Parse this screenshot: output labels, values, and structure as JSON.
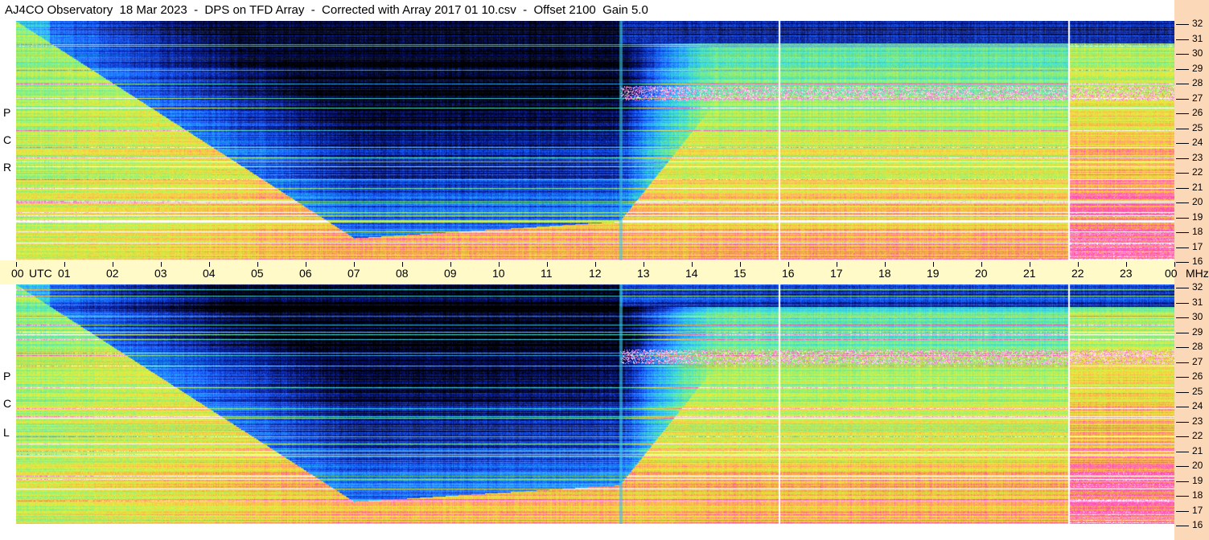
{
  "title": "AJ4CO Observatory  18 Mar 2023  -  DPS on TFD Array  -  Corrected with Array 2017 01 10.csv  -  Offset 2100  Gain 5.0",
  "panels": {
    "top": [
      "R",
      "C",
      "P"
    ],
    "bottom": [
      "L",
      "C",
      "P"
    ]
  },
  "chart_data": {
    "type": "heatmap",
    "title": "AJ4CO Observatory  18 Mar 2023  -  DPS on TFD Array  -  Corrected with Array 2017 01 10.csv  -  Offset 2100  Gain 5.0",
    "x_axis": {
      "label_start": "00",
      "utc_label": "UTC",
      "unit_label": "MHz",
      "range": [
        0,
        24
      ],
      "ticks": [
        "00",
        "01",
        "02",
        "03",
        "04",
        "05",
        "06",
        "07",
        "08",
        "09",
        "10",
        "11",
        "12",
        "13",
        "14",
        "15",
        "16",
        "17",
        "18",
        "19",
        "20",
        "21",
        "22",
        "23",
        "00"
      ]
    },
    "y_axis": {
      "range": [
        16,
        32
      ],
      "ticks": [
        "32",
        "31",
        "30",
        "29",
        "28",
        "27",
        "26",
        "25",
        "24",
        "23",
        "22",
        "21",
        "20",
        "19",
        "18",
        "17",
        "16"
      ]
    },
    "series": [
      {
        "name": "RCP"
      },
      {
        "name": "LCP"
      }
    ],
    "colormap": [
      "#000000",
      "#0a1a8c",
      "#1a5cff",
      "#2aa8ff",
      "#3fe0d0",
      "#8af07a",
      "#e6f03c",
      "#ffb04a",
      "#ff40c0",
      "#ffffff"
    ],
    "grid": false
  }
}
